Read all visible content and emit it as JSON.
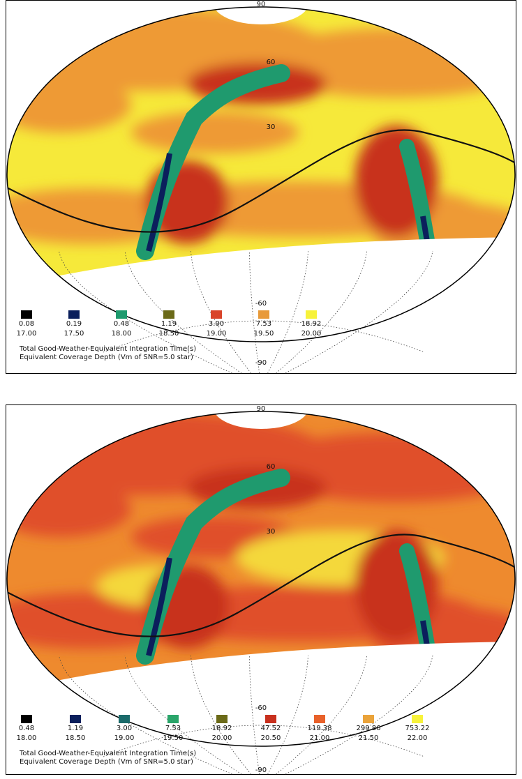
{
  "panels": [
    {
      "grid_labels": {
        "top": "90",
        "upper": "60",
        "mid": "30",
        "low": "-60",
        "bottom": "-90"
      },
      "legend": [
        {
          "color": "#000000",
          "time": "0.08",
          "depth": "17.00"
        },
        {
          "color": "#0b1f5c",
          "time": "0.19",
          "depth": "17.50"
        },
        {
          "color": "#1f9a6e",
          "time": "0.48",
          "depth": "18.00"
        },
        {
          "color": "#6b6a18",
          "time": "1.19",
          "depth": "18.50"
        },
        {
          "color": "#d9442a",
          "time": "3.00",
          "depth": "19.00"
        },
        {
          "color": "#e89a3a",
          "time": "7.53",
          "depth": "19.50"
        },
        {
          "color": "#f7f23a",
          "time": "18.92",
          "depth": "20.00"
        }
      ],
      "caption": [
        "Total Good-Weather-Equivalent Integration Time(s)",
        "Equivalent Coverage Depth (Vm of SNR=5.0 star)"
      ]
    },
    {
      "grid_labels": {
        "top": "90",
        "upper": "60",
        "mid": "30",
        "low": "-60",
        "bottom": "-90"
      },
      "legend": [
        {
          "color": "#000000",
          "time": "0.48",
          "depth": "18.00"
        },
        {
          "color": "#0b1f5c",
          "time": "1.19",
          "depth": "18.50"
        },
        {
          "color": "#1a6a6a",
          "time": "3.00",
          "depth": "19.00"
        },
        {
          "color": "#2aa56a",
          "time": "7.53",
          "depth": "19.50"
        },
        {
          "color": "#6b6a18",
          "time": "18.92",
          "depth": "20.00"
        },
        {
          "color": "#c8301e",
          "time": "47.52",
          "depth": "20.50"
        },
        {
          "color": "#e8612a",
          "time": "119.38",
          "depth": "21.00"
        },
        {
          "color": "#eaa33a",
          "time": "299.86",
          "depth": "21.50"
        },
        {
          "color": "#f7f23a",
          "time": "753.22",
          "depth": "22.00"
        }
      ],
      "caption": [
        "Total Good-Weather-Equivalent Integration Time(s)",
        "Equivalent Coverage Depth (Vm of SNR=5.0 star)"
      ]
    }
  ]
}
